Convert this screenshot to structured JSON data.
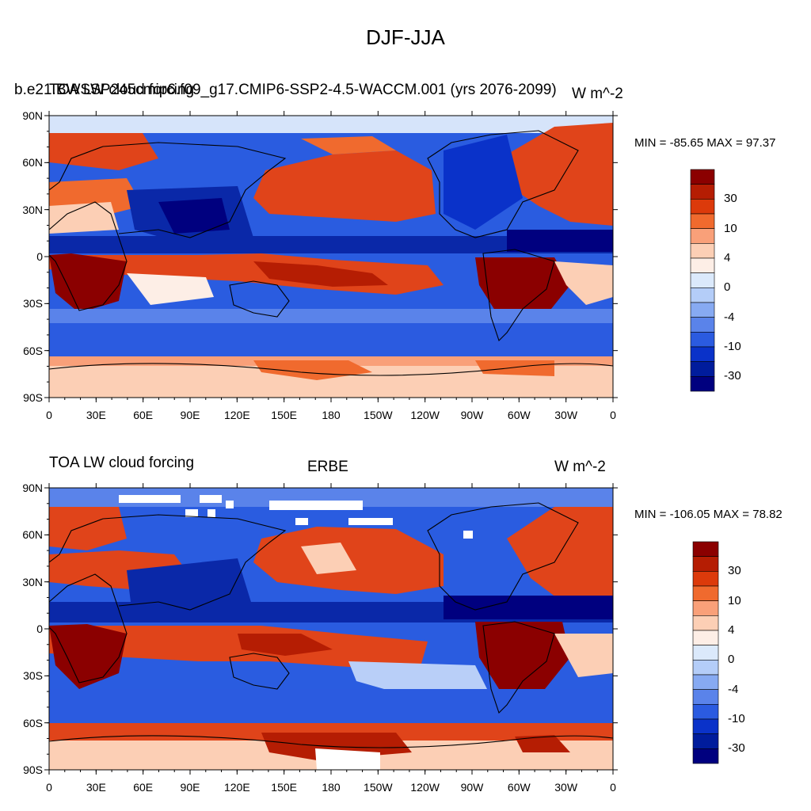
{
  "title": "DJF-JJA",
  "panels": [
    {
      "left_title": "TOA LW cloud forcing",
      "center_title": "b.e21.BWSSP245cmip6.f09_g17.CMIP6-SSP2-4.5-WACCM.001 (yrs 2076-2099)",
      "right_title": "W m^-2",
      "min_max": "MIN = -85.65 MAX =  97.37"
    },
    {
      "left_title": "TOA LW cloud forcing",
      "center_title": "ERBE",
      "right_title": "W m^-2",
      "min_max": "MIN = -106.05 MAX =  78.82"
    }
  ],
  "lat_labels": [
    "90N",
    "60N",
    "30N",
    "0",
    "30S",
    "60S",
    "90S"
  ],
  "lon_labels": [
    "0",
    "30E",
    "60E",
    "90E",
    "120E",
    "150E",
    "180",
    "150W",
    "120W",
    "90W",
    "60W",
    "30W",
    "0"
  ],
  "colorbar": {
    "labels": [
      "30",
      "10",
      "4",
      "0",
      "-4",
      "-10",
      "-30"
    ],
    "colors": [
      "#8b0000",
      "#b51d03",
      "#dc3a0b",
      "#f06a2e",
      "#f9a079",
      "#fccfb5",
      "#fdeee6",
      "#dbe9fb",
      "#b4cdf8",
      "#87aaf2",
      "#5a83ea",
      "#2b5be0",
      "#0a32c9",
      "#001c9c",
      "#00007f"
    ]
  },
  "map_colors": {
    "ocean": "#1f4fdc",
    "deep_blue": "#0a28a8",
    "mid_blue": "#6a93ee",
    "light_blue": "#b9cff8",
    "pale": "#fbe1d4",
    "light_red": "#f7a486",
    "red": "#e0441a",
    "dark_red": "#8b0000",
    "missing": "#ffffff"
  }
}
